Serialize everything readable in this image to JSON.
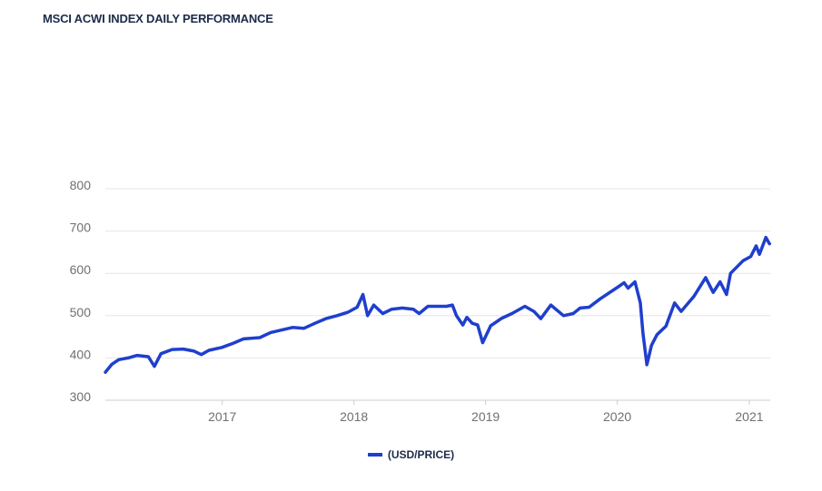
{
  "title": "MSCI ACWI INDEX DAILY PERFORMANCE",
  "legend": {
    "label": "(USD/PRICE)"
  },
  "colors": {
    "series": "#1f3fcc",
    "grid": "#e6e6e6",
    "axis": "#cccccc",
    "tick": "#707070",
    "title": "#1c2b4a"
  },
  "chart_data": {
    "type": "line",
    "title": "MSCI ACWI INDEX DAILY PERFORMANCE",
    "xlabel": "",
    "ylabel": "",
    "xlim": [
      "2016-02-12",
      "2021-02-28"
    ],
    "ylim": [
      300,
      800
    ],
    "y_ticks": [
      300,
      400,
      500,
      600,
      700,
      800
    ],
    "x_ticks": [
      "2017",
      "2018",
      "2019",
      "2020",
      "2021"
    ],
    "grid": "horizontal",
    "legend": "bottom-center",
    "series": [
      {
        "name": "(USD/PRICE)",
        "points": [
          [
            "2016-02-12",
            366
          ],
          [
            "2016-03-01",
            385
          ],
          [
            "2016-03-20",
            396
          ],
          [
            "2016-04-15",
            400
          ],
          [
            "2016-05-10",
            406
          ],
          [
            "2016-06-10",
            403
          ],
          [
            "2016-06-27",
            380
          ],
          [
            "2016-07-15",
            410
          ],
          [
            "2016-08-15",
            420
          ],
          [
            "2016-09-15",
            421
          ],
          [
            "2016-10-15",
            416
          ],
          [
            "2016-11-04",
            408
          ],
          [
            "2016-11-25",
            418
          ],
          [
            "2016-12-31",
            425
          ],
          [
            "2017-02-01",
            435
          ],
          [
            "2017-03-01",
            445
          ],
          [
            "2017-04-15",
            448
          ],
          [
            "2017-05-15",
            460
          ],
          [
            "2017-06-15",
            466
          ],
          [
            "2017-07-15",
            472
          ],
          [
            "2017-08-15",
            470
          ],
          [
            "2017-09-15",
            482
          ],
          [
            "2017-10-15",
            493
          ],
          [
            "2017-11-15",
            500
          ],
          [
            "2017-12-15",
            508
          ],
          [
            "2018-01-10",
            520
          ],
          [
            "2018-01-26",
            550
          ],
          [
            "2018-02-08",
            500
          ],
          [
            "2018-02-25",
            525
          ],
          [
            "2018-03-22",
            505
          ],
          [
            "2018-04-15",
            515
          ],
          [
            "2018-05-15",
            518
          ],
          [
            "2018-06-15",
            515
          ],
          [
            "2018-07-01",
            505
          ],
          [
            "2018-07-25",
            522
          ],
          [
            "2018-09-15",
            522
          ],
          [
            "2018-10-01",
            525
          ],
          [
            "2018-10-12",
            500
          ],
          [
            "2018-10-30",
            478
          ],
          [
            "2018-11-10",
            496
          ],
          [
            "2018-11-25",
            482
          ],
          [
            "2018-12-10",
            478
          ],
          [
            "2018-12-24",
            436
          ],
          [
            "2019-01-15",
            476
          ],
          [
            "2019-02-15",
            494
          ],
          [
            "2019-03-15",
            505
          ],
          [
            "2019-04-20",
            522
          ],
          [
            "2019-05-15",
            510
          ],
          [
            "2019-06-03",
            493
          ],
          [
            "2019-07-01",
            525
          ],
          [
            "2019-08-05",
            500
          ],
          [
            "2019-09-01",
            505
          ],
          [
            "2019-09-20",
            518
          ],
          [
            "2019-10-15",
            520
          ],
          [
            "2019-11-15",
            540
          ],
          [
            "2019-12-31",
            566
          ],
          [
            "2020-01-20",
            578
          ],
          [
            "2020-01-31",
            565
          ],
          [
            "2020-02-19",
            580
          ],
          [
            "2020-03-05",
            530
          ],
          [
            "2020-03-12",
            460
          ],
          [
            "2020-03-23",
            384
          ],
          [
            "2020-04-05",
            430
          ],
          [
            "2020-04-20",
            455
          ],
          [
            "2020-05-15",
            475
          ],
          [
            "2020-06-08",
            530
          ],
          [
            "2020-06-26",
            510
          ],
          [
            "2020-07-31",
            545
          ],
          [
            "2020-09-02",
            590
          ],
          [
            "2020-09-23",
            555
          ],
          [
            "2020-10-12",
            580
          ],
          [
            "2020-10-30",
            550
          ],
          [
            "2020-11-10",
            600
          ],
          [
            "2020-12-15",
            630
          ],
          [
            "2021-01-05",
            640
          ],
          [
            "2021-01-20",
            665
          ],
          [
            "2021-01-29",
            645
          ],
          [
            "2021-02-16",
            685
          ],
          [
            "2021-02-26",
            670
          ]
        ]
      }
    ]
  }
}
